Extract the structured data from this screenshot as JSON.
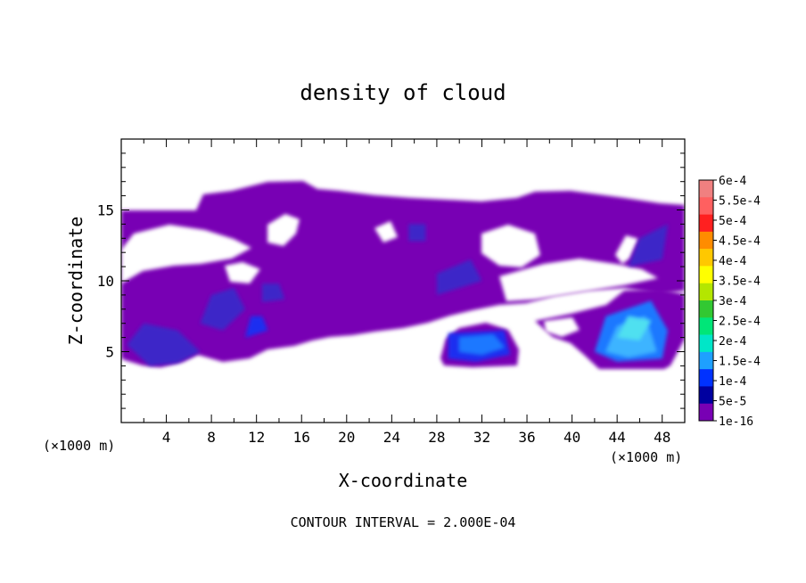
{
  "chart_data": {
    "type": "heatmap",
    "title": "density of cloud",
    "xlabel": "X-coordinate",
    "ylabel": "Z-coordinate",
    "x_unit": "(×1000 m)",
    "z_unit": "(×1000 m)",
    "footer": "CONTOUR INTERVAL = 2.000E-04",
    "xlim": [
      0,
      50
    ],
    "ylim": [
      0,
      20
    ],
    "x_ticks": [
      4,
      8,
      12,
      16,
      20,
      24,
      28,
      32,
      36,
      40,
      44,
      48
    ],
    "y_ticks": [
      5,
      10,
      15
    ],
    "grid": false,
    "colorbar": {
      "placement": "right",
      "labels": [
        "6e-4",
        "5.5e-4",
        "5e-4",
        "4.5e-4",
        "4e-4",
        "3.5e-4",
        "3e-4",
        "2.5e-4",
        "2e-4",
        "1.5e-4",
        "1e-4",
        "5e-5",
        "1e-16"
      ],
      "colors": [
        "#f08080",
        "#ff6060",
        "#ff2020",
        "#ff8c00",
        "#ffc800",
        "#ffff00",
        "#b4e600",
        "#32c832",
        "#00e678",
        "#00e6c8",
        "#1ea0ff",
        "#0032ff",
        "#0000a0",
        "#7800b4"
      ]
    },
    "cloud_regions": [
      {
        "x": [
          0.5,
          2.5,
          5,
          7,
          5,
          2
        ],
        "z": [
          5.5,
          4,
          4.2,
          5,
          6.5,
          7
        ],
        "level": 1
      },
      {
        "x": [
          7,
          9,
          11,
          10,
          8
        ],
        "z": [
          7,
          6.5,
          8,
          9.5,
          9
        ],
        "level": 1
      },
      {
        "x": [
          11,
          13,
          12.5,
          11.5
        ],
        "z": [
          6,
          6.5,
          7.5,
          7.5
        ],
        "level": 2
      },
      {
        "x": [
          12.5,
          14.5,
          14,
          12.5
        ],
        "z": [
          8.5,
          8.7,
          9.8,
          9.8
        ],
        "level": 1
      },
      {
        "x": [
          25.5,
          27,
          27,
          25.5
        ],
        "z": [
          12.8,
          12.8,
          14,
          14
        ],
        "level": 1
      },
      {
        "x": [
          28,
          32,
          31,
          28
        ],
        "z": [
          9,
          10,
          11.5,
          10.5
        ],
        "level": 1
      },
      {
        "x": [
          29,
          31.5,
          34.5,
          34,
          29
        ],
        "z": [
          4.5,
          4.3,
          4.8,
          6.5,
          6.3
        ],
        "level": 2
      },
      {
        "x": [
          30,
          32,
          34,
          33,
          30
        ],
        "z": [
          5,
          4.8,
          5.3,
          6.2,
          6.0
        ],
        "level": 3
      },
      {
        "x": [
          42,
          44,
          48,
          48.5,
          47,
          43
        ],
        "z": [
          5,
          4.3,
          4.5,
          6.5,
          8.6,
          7.5
        ],
        "level": 3
      },
      {
        "x": [
          43,
          45,
          47.5,
          46.5,
          44
        ],
        "z": [
          5,
          4.6,
          5,
          7.5,
          6.8
        ],
        "level": 4
      },
      {
        "x": [
          44,
          46,
          47,
          45
        ],
        "z": [
          6,
          5.8,
          7.2,
          7.5
        ],
        "level": 5
      },
      {
        "x": [
          45,
          48,
          48.5,
          46
        ],
        "z": [
          11,
          11.5,
          14,
          13
        ],
        "level": 1
      }
    ]
  }
}
